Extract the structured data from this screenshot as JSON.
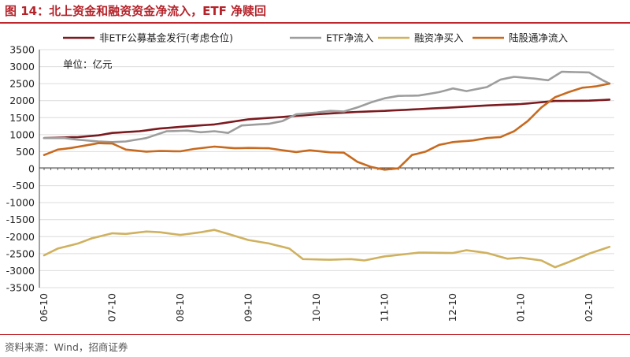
{
  "header": {
    "title": "图 14：北上资金和融资资金净流入，ETF 净赎回"
  },
  "footer": {
    "source": "资料来源：Wind，招商证券"
  },
  "chart_data": {
    "type": "line",
    "unit_label": "单位：亿元",
    "ylim": [
      -3500,
      3500
    ],
    "yticks": [
      3500,
      3000,
      2500,
      2000,
      1500,
      1000,
      500,
      0,
      -500,
      -1000,
      -1500,
      -2000,
      -2500,
      -3000,
      -3500
    ],
    "xtick_labels": [
      "06-10",
      "07-10",
      "08-10",
      "09-10",
      "10-10",
      "11-10",
      "12-10",
      "01-10",
      "02-10"
    ],
    "xtick_index": [
      0,
      10,
      20,
      30,
      40,
      50,
      60,
      70,
      80
    ],
    "n_points": 84,
    "legend_position": "top",
    "colors": {
      "series1": "#7b1a1f",
      "series2": "#9d9d9d",
      "series3": "#cfb15f",
      "series4": "#c76a1f",
      "grid": "#dcdcdc",
      "axis": "#444444"
    },
    "series": [
      {
        "name": "非ETF公募基金发行(考虑仓位)",
        "color": "#7b1a1f",
        "keypoints": [
          [
            0,
            900
          ],
          [
            5,
            930
          ],
          [
            8,
            980
          ],
          [
            10,
            1050
          ],
          [
            14,
            1100
          ],
          [
            17,
            1180
          ],
          [
            20,
            1230
          ],
          [
            25,
            1300
          ],
          [
            30,
            1450
          ],
          [
            35,
            1520
          ],
          [
            40,
            1600
          ],
          [
            45,
            1660
          ],
          [
            50,
            1700
          ],
          [
            55,
            1750
          ],
          [
            60,
            1800
          ],
          [
            65,
            1860
          ],
          [
            70,
            1900
          ],
          [
            75,
            1990
          ],
          [
            80,
            2000
          ],
          [
            83,
            2030
          ]
        ]
      },
      {
        "name": "ETF净流入",
        "color": "#9d9d9d",
        "keypoints": [
          [
            0,
            900
          ],
          [
            3,
            900
          ],
          [
            5,
            850
          ],
          [
            8,
            800
          ],
          [
            10,
            780
          ],
          [
            12,
            800
          ],
          [
            15,
            900
          ],
          [
            18,
            1100
          ],
          [
            21,
            1120
          ],
          [
            23,
            1070
          ],
          [
            25,
            1100
          ],
          [
            27,
            1050
          ],
          [
            29,
            1270
          ],
          [
            33,
            1320
          ],
          [
            35,
            1400
          ],
          [
            37,
            1600
          ],
          [
            40,
            1650
          ],
          [
            42,
            1700
          ],
          [
            44,
            1680
          ],
          [
            46,
            1800
          ],
          [
            48,
            1950
          ],
          [
            50,
            2070
          ],
          [
            52,
            2140
          ],
          [
            55,
            2150
          ],
          [
            58,
            2250
          ],
          [
            60,
            2360
          ],
          [
            62,
            2280
          ],
          [
            65,
            2400
          ],
          [
            67,
            2620
          ],
          [
            69,
            2700
          ],
          [
            72,
            2650
          ],
          [
            74,
            2600
          ],
          [
            76,
            2850
          ],
          [
            80,
            2830
          ],
          [
            82,
            2600
          ],
          [
            83,
            2500
          ]
        ]
      },
      {
        "name": "融资净买入",
        "color": "#cfb15f",
        "keypoints": [
          [
            0,
            -2550
          ],
          [
            2,
            -2350
          ],
          [
            5,
            -2200
          ],
          [
            7,
            -2050
          ],
          [
            10,
            -1900
          ],
          [
            12,
            -1920
          ],
          [
            15,
            -1850
          ],
          [
            17,
            -1870
          ],
          [
            20,
            -1950
          ],
          [
            23,
            -1870
          ],
          [
            25,
            -1800
          ],
          [
            27,
            -1920
          ],
          [
            30,
            -2100
          ],
          [
            33,
            -2200
          ],
          [
            36,
            -2350
          ],
          [
            38,
            -2660
          ],
          [
            42,
            -2680
          ],
          [
            45,
            -2660
          ],
          [
            47,
            -2700
          ],
          [
            50,
            -2580
          ],
          [
            55,
            -2470
          ],
          [
            60,
            -2480
          ],
          [
            62,
            -2400
          ],
          [
            65,
            -2480
          ],
          [
            68,
            -2650
          ],
          [
            70,
            -2620
          ],
          [
            73,
            -2700
          ],
          [
            75,
            -2900
          ],
          [
            77,
            -2750
          ],
          [
            80,
            -2500
          ],
          [
            83,
            -2300
          ]
        ]
      },
      {
        "name": "陆股通净流入",
        "color": "#c76a1f",
        "keypoints": [
          [
            0,
            400
          ],
          [
            2,
            560
          ],
          [
            4,
            610
          ],
          [
            6,
            680
          ],
          [
            8,
            750
          ],
          [
            10,
            740
          ],
          [
            12,
            560
          ],
          [
            15,
            500
          ],
          [
            17,
            520
          ],
          [
            20,
            510
          ],
          [
            22,
            580
          ],
          [
            25,
            650
          ],
          [
            28,
            600
          ],
          [
            30,
            610
          ],
          [
            33,
            600
          ],
          [
            35,
            540
          ],
          [
            37,
            490
          ],
          [
            39,
            540
          ],
          [
            42,
            480
          ],
          [
            44,
            470
          ],
          [
            46,
            200
          ],
          [
            48,
            50
          ],
          [
            50,
            -30
          ],
          [
            52,
            10
          ],
          [
            54,
            400
          ],
          [
            56,
            500
          ],
          [
            58,
            700
          ],
          [
            60,
            780
          ],
          [
            63,
            830
          ],
          [
            65,
            900
          ],
          [
            67,
            930
          ],
          [
            69,
            1100
          ],
          [
            71,
            1400
          ],
          [
            73,
            1800
          ],
          [
            75,
            2100
          ],
          [
            77,
            2250
          ],
          [
            79,
            2380
          ],
          [
            81,
            2420
          ],
          [
            83,
            2500
          ]
        ]
      }
    ]
  }
}
